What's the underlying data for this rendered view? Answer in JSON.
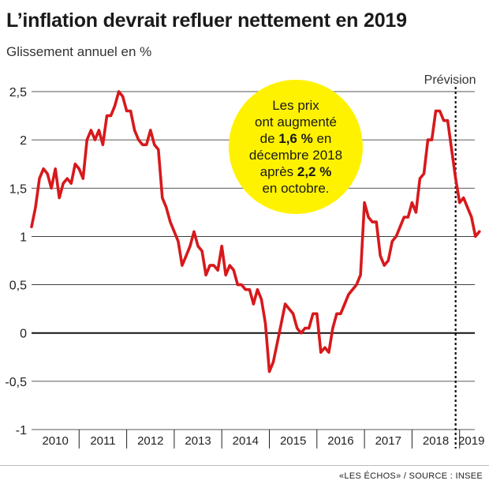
{
  "title": "L’inflation devrait refluer nettement en 2019",
  "subtitle": "Glissement annuel en %",
  "source": "«LES ÉCHOS» / SOURCE : INSEE",
  "callout": {
    "line1": "Les prix",
    "line2": "ont augmenté",
    "line3_pre": "de ",
    "line3_bold": "1,6 %",
    "line3_post": " en",
    "line4": "décembre 2018",
    "line5_pre": "après ",
    "line5_bold": "2,2 %",
    "line6": "en octobre."
  },
  "chart_data": {
    "type": "line",
    "title": "L’inflation devrait refluer nettement en 2019",
    "subtitle": "Glissement annuel en %",
    "ylim": [
      -1,
      2.5
    ],
    "yticks": [
      2.5,
      2,
      1.5,
      1,
      0.5,
      0,
      -0.5,
      -1
    ],
    "ytick_labels": [
      "2,5",
      "2",
      "1,5",
      "1",
      "0,5",
      "0",
      "-0,5",
      "-1"
    ],
    "xticks": [
      "2010",
      "2011",
      "2012",
      "2013",
      "2014",
      "2015",
      "2016",
      "2017",
      "2018",
      "2019"
    ],
    "xlim": [
      "2010-01",
      "2019-06"
    ],
    "grid": "horizontal",
    "forecast_label": "Prévision",
    "forecast_start": "2018-12",
    "line_color": "#d7191c",
    "callout_color": "#fff200",
    "series": [
      {
        "points": [
          [
            "2010-01",
            1.1
          ],
          [
            "2010-02",
            1.3
          ],
          [
            "2010-03",
            1.6
          ],
          [
            "2010-04",
            1.7
          ],
          [
            "2010-05",
            1.65
          ],
          [
            "2010-06",
            1.5
          ],
          [
            "2010-07",
            1.7
          ],
          [
            "2010-08",
            1.4
          ],
          [
            "2010-09",
            1.55
          ],
          [
            "2010-10",
            1.6
          ],
          [
            "2010-11",
            1.55
          ],
          [
            "2010-12",
            1.75
          ],
          [
            "2011-01",
            1.7
          ],
          [
            "2011-02",
            1.6
          ],
          [
            "2011-03",
            2.0
          ],
          [
            "2011-04",
            2.1
          ],
          [
            "2011-05",
            2.0
          ],
          [
            "2011-06",
            2.1
          ],
          [
            "2011-07",
            1.95
          ],
          [
            "2011-08",
            2.25
          ],
          [
            "2011-09",
            2.25
          ],
          [
            "2011-10",
            2.35
          ],
          [
            "2011-11",
            2.5
          ],
          [
            "2011-12",
            2.45
          ],
          [
            "2012-01",
            2.3
          ],
          [
            "2012-02",
            2.3
          ],
          [
            "2012-03",
            2.1
          ],
          [
            "2012-04",
            2.0
          ],
          [
            "2012-05",
            1.95
          ],
          [
            "2012-06",
            1.95
          ],
          [
            "2012-07",
            2.1
          ],
          [
            "2012-08",
            1.95
          ],
          [
            "2012-09",
            1.9
          ],
          [
            "2012-10",
            1.4
          ],
          [
            "2012-11",
            1.3
          ],
          [
            "2012-12",
            1.15
          ],
          [
            "2013-01",
            1.05
          ],
          [
            "2013-02",
            0.95
          ],
          [
            "2013-03",
            0.7
          ],
          [
            "2013-04",
            0.8
          ],
          [
            "2013-05",
            0.9
          ],
          [
            "2013-06",
            1.05
          ],
          [
            "2013-07",
            0.9
          ],
          [
            "2013-08",
            0.85
          ],
          [
            "2013-09",
            0.6
          ],
          [
            "2013-10",
            0.7
          ],
          [
            "2013-11",
            0.7
          ],
          [
            "2013-12",
            0.65
          ],
          [
            "2014-01",
            0.9
          ],
          [
            "2014-02",
            0.6
          ],
          [
            "2014-03",
            0.7
          ],
          [
            "2014-04",
            0.65
          ],
          [
            "2014-05",
            0.5
          ],
          [
            "2014-06",
            0.5
          ],
          [
            "2014-07",
            0.45
          ],
          [
            "2014-08",
            0.45
          ],
          [
            "2014-09",
            0.3
          ],
          [
            "2014-10",
            0.45
          ],
          [
            "2014-11",
            0.35
          ],
          [
            "2014-12",
            0.1
          ],
          [
            "2015-01",
            -0.4
          ],
          [
            "2015-02",
            -0.3
          ],
          [
            "2015-03",
            -0.1
          ],
          [
            "2015-04",
            0.1
          ],
          [
            "2015-05",
            0.3
          ],
          [
            "2015-06",
            0.25
          ],
          [
            "2015-07",
            0.2
          ],
          [
            "2015-08",
            0.05
          ],
          [
            "2015-09",
            0.0
          ],
          [
            "2015-10",
            0.05
          ],
          [
            "2015-11",
            0.05
          ],
          [
            "2015-12",
            0.2
          ],
          [
            "2016-01",
            0.2
          ],
          [
            "2016-02",
            -0.2
          ],
          [
            "2016-03",
            -0.15
          ],
          [
            "2016-04",
            -0.2
          ],
          [
            "2016-05",
            0.05
          ],
          [
            "2016-06",
            0.2
          ],
          [
            "2016-07",
            0.2
          ],
          [
            "2016-08",
            0.3
          ],
          [
            "2016-09",
            0.4
          ],
          [
            "2016-10",
            0.45
          ],
          [
            "2016-11",
            0.5
          ],
          [
            "2016-12",
            0.6
          ],
          [
            "2017-01",
            1.35
          ],
          [
            "2017-02",
            1.2
          ],
          [
            "2017-03",
            1.15
          ],
          [
            "2017-04",
            1.15
          ],
          [
            "2017-05",
            0.8
          ],
          [
            "2017-06",
            0.7
          ],
          [
            "2017-07",
            0.75
          ],
          [
            "2017-08",
            0.95
          ],
          [
            "2017-09",
            1.0
          ],
          [
            "2017-10",
            1.1
          ],
          [
            "2017-11",
            1.2
          ],
          [
            "2017-12",
            1.2
          ],
          [
            "2018-01",
            1.35
          ],
          [
            "2018-02",
            1.25
          ],
          [
            "2018-03",
            1.6
          ],
          [
            "2018-04",
            1.65
          ],
          [
            "2018-05",
            2.0
          ],
          [
            "2018-06",
            2.0
          ],
          [
            "2018-07",
            2.3
          ],
          [
            "2018-08",
            2.3
          ],
          [
            "2018-09",
            2.2
          ],
          [
            "2018-10",
            2.2
          ],
          [
            "2018-11",
            1.9
          ],
          [
            "2018-12",
            1.6
          ],
          [
            "2019-01",
            1.35
          ],
          [
            "2019-02",
            1.4
          ],
          [
            "2019-03",
            1.3
          ],
          [
            "2019-04",
            1.2
          ],
          [
            "2019-05",
            1.0
          ],
          [
            "2019-06",
            1.05
          ]
        ]
      }
    ]
  }
}
